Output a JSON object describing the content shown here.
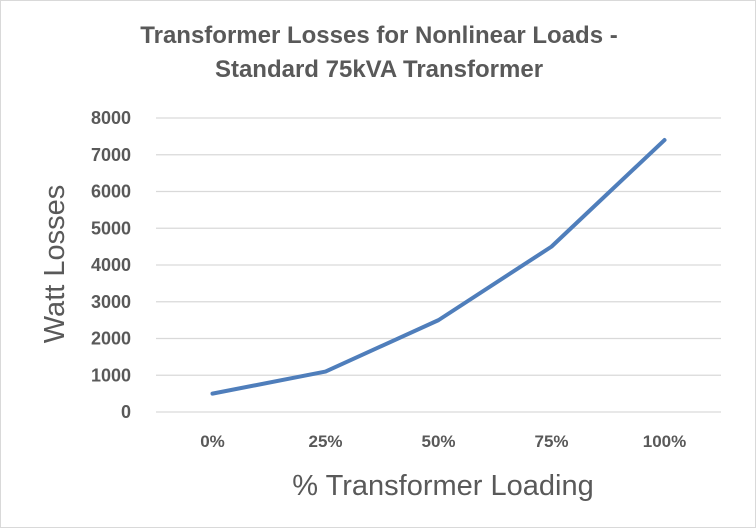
{
  "chart_data": {
    "type": "line",
    "title": "Transformer Losses for Nonlinear Loads -",
    "subtitle": "Standard 75kVA Transformer",
    "xlabel": "% Transformer Loading",
    "ylabel": "Watt Losses",
    "categories": [
      "0%",
      "25%",
      "50%",
      "75%",
      "100%"
    ],
    "series": [
      {
        "values": [
          500,
          1100,
          2500,
          4500,
          7400
        ]
      }
    ],
    "ylim": [
      0,
      8000
    ],
    "yticks": [
      0,
      1000,
      2000,
      3000,
      4000,
      5000,
      6000,
      7000,
      8000
    ],
    "grid": true,
    "legend": "none",
    "colors": {
      "line": "#4f7ebb",
      "grid": "#d9d9d9",
      "text": "#595959"
    }
  }
}
